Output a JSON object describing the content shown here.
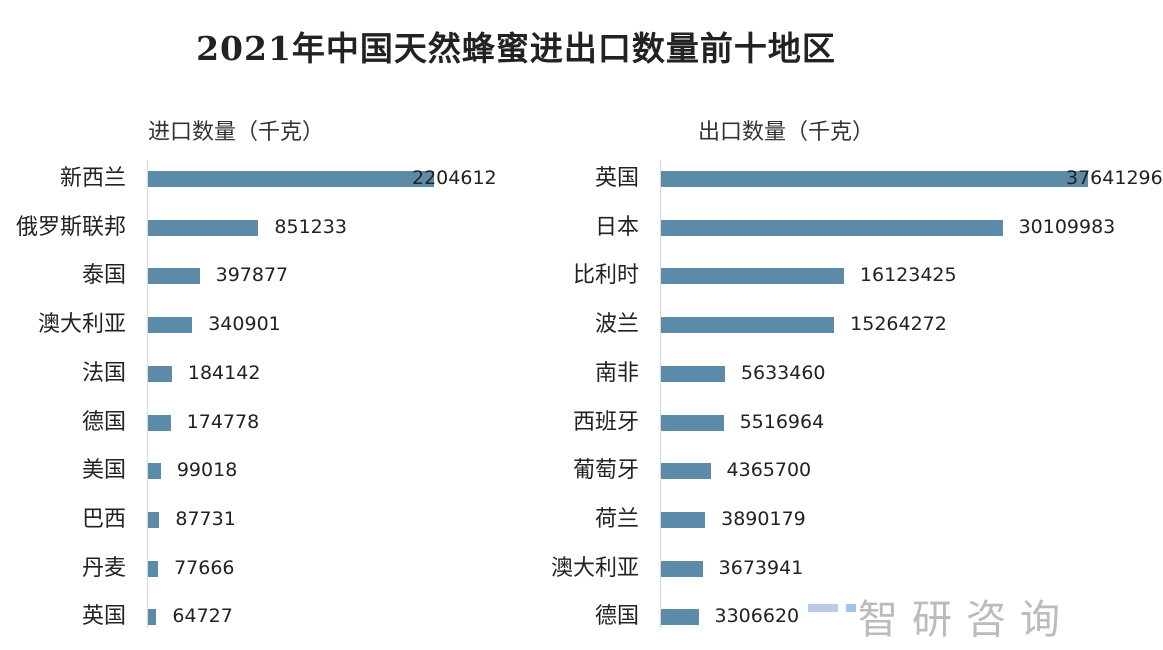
{
  "title": "2021年中国天然蜂蜜进出口数量前十地区",
  "watermark": "智研咨询",
  "colors": {
    "bar": "#5b8ba8"
  },
  "chart_data": [
    {
      "type": "bar",
      "orientation": "horizontal",
      "title": "进口数量（千克）",
      "categories": [
        "新西兰",
        "俄罗斯联邦",
        "泰国",
        "澳大利亚",
        "法国",
        "德国",
        "美国",
        "巴西",
        "丹麦",
        "英国"
      ],
      "values": [
        2204612,
        851233,
        397877,
        340901,
        184142,
        174778,
        99018,
        87731,
        77666,
        64727
      ],
      "grid": false
    },
    {
      "type": "bar",
      "orientation": "horizontal",
      "title": "出口数量（千克）",
      "categories": [
        "英国",
        "日本",
        "比利时",
        "波兰",
        "南非",
        "西班牙",
        "葡萄牙",
        "荷兰",
        "澳大利亚",
        "德国"
      ],
      "values": [
        37641296,
        30109983,
        16123425,
        15264272,
        5633460,
        5516964,
        4365700,
        3890179,
        3673941,
        3306620
      ],
      "grid": false
    }
  ]
}
